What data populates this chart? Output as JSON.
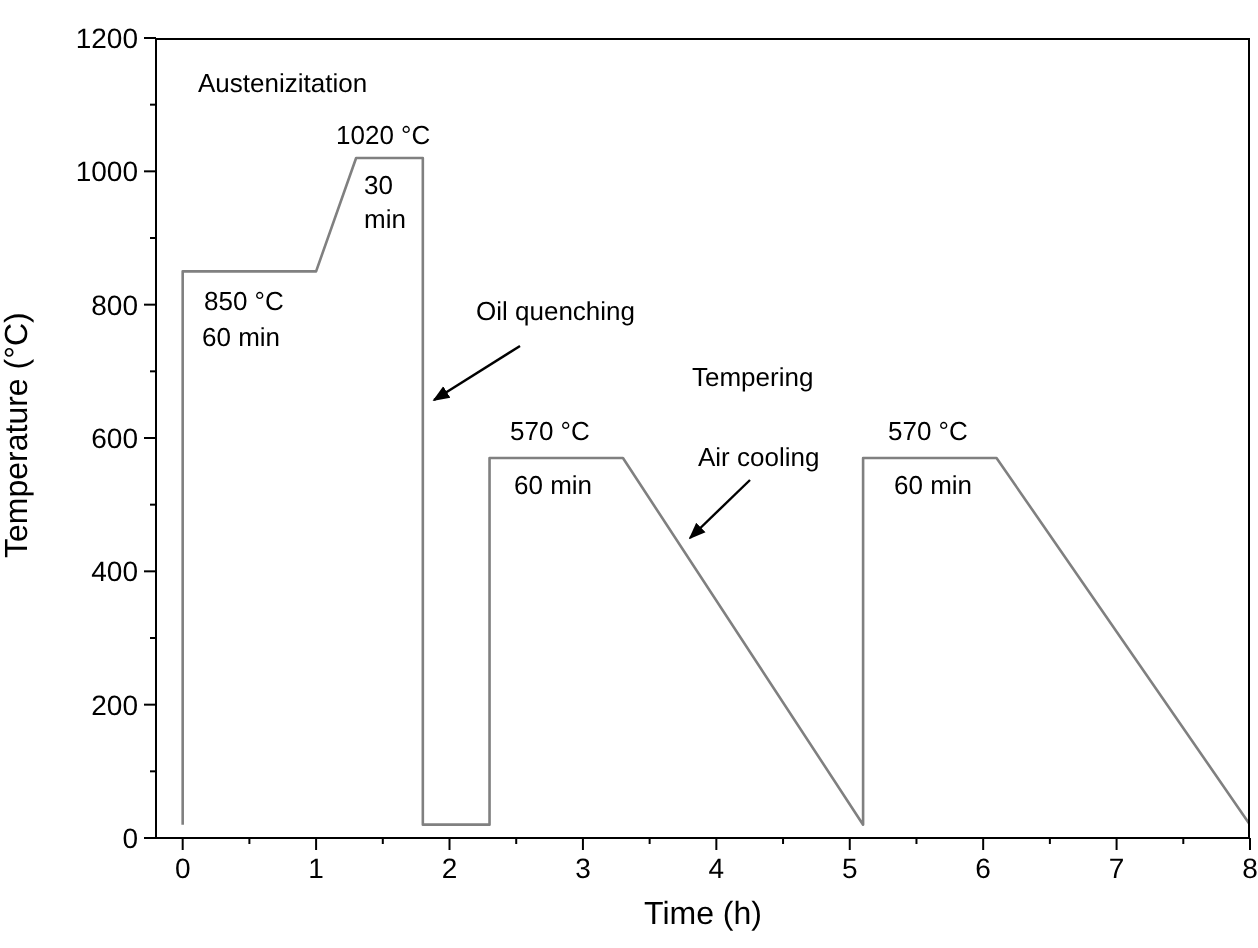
{
  "chart_data": {
    "type": "line",
    "xlabel": "Time (h)",
    "ylabel": "Temperature (°C)",
    "x": [
      0,
      0,
      1,
      1.3,
      1.8,
      1.8,
      2.3,
      2.3,
      3.3,
      5.1,
      5.1,
      6.1,
      8
    ],
    "series": [
      {
        "color": "#808080",
        "values": [
          20,
          850,
          850,
          1020,
          1020,
          20,
          20,
          570,
          570,
          20,
          570,
          570,
          20
        ]
      }
    ],
    "xlim": [
      -0.2,
      8
    ],
    "xticks": [
      0,
      {
        "value": 0.5,
        "label": null
      },
      1,
      {
        "value": 1.5,
        "label": null
      },
      2,
      {
        "value": 2.5,
        "label": null
      },
      3,
      {
        "value": 3.5,
        "label": null
      },
      4,
      {
        "value": 4.5,
        "label": null
      },
      5,
      {
        "value": 5.5,
        "label": null
      },
      6,
      {
        "value": 6.5,
        "label": null
      },
      7,
      {
        "value": 7.5,
        "label": null
      },
      8
    ],
    "ylim": [
      0,
      1200
    ],
    "yticks": [
      0,
      {
        "value": 100,
        "label": null
      },
      200,
      {
        "value": 300,
        "label": null
      },
      400,
      {
        "value": 500,
        "label": null
      },
      600,
      {
        "value": 700,
        "label": null
      },
      800,
      {
        "value": 900,
        "label": null
      },
      1000,
      {
        "value": 1100,
        "label": null
      },
      1200
    ],
    "marker": "none",
    "line_style": "solid",
    "annotations": [
      "Austenizitation",
      "1020 °C",
      "30 min",
      "850 °C",
      "60 min",
      "Oil quenching",
      "Tempering",
      "570 °C",
      "60 min",
      "Air cooling",
      "570 °C",
      "60 min"
    ]
  }
}
